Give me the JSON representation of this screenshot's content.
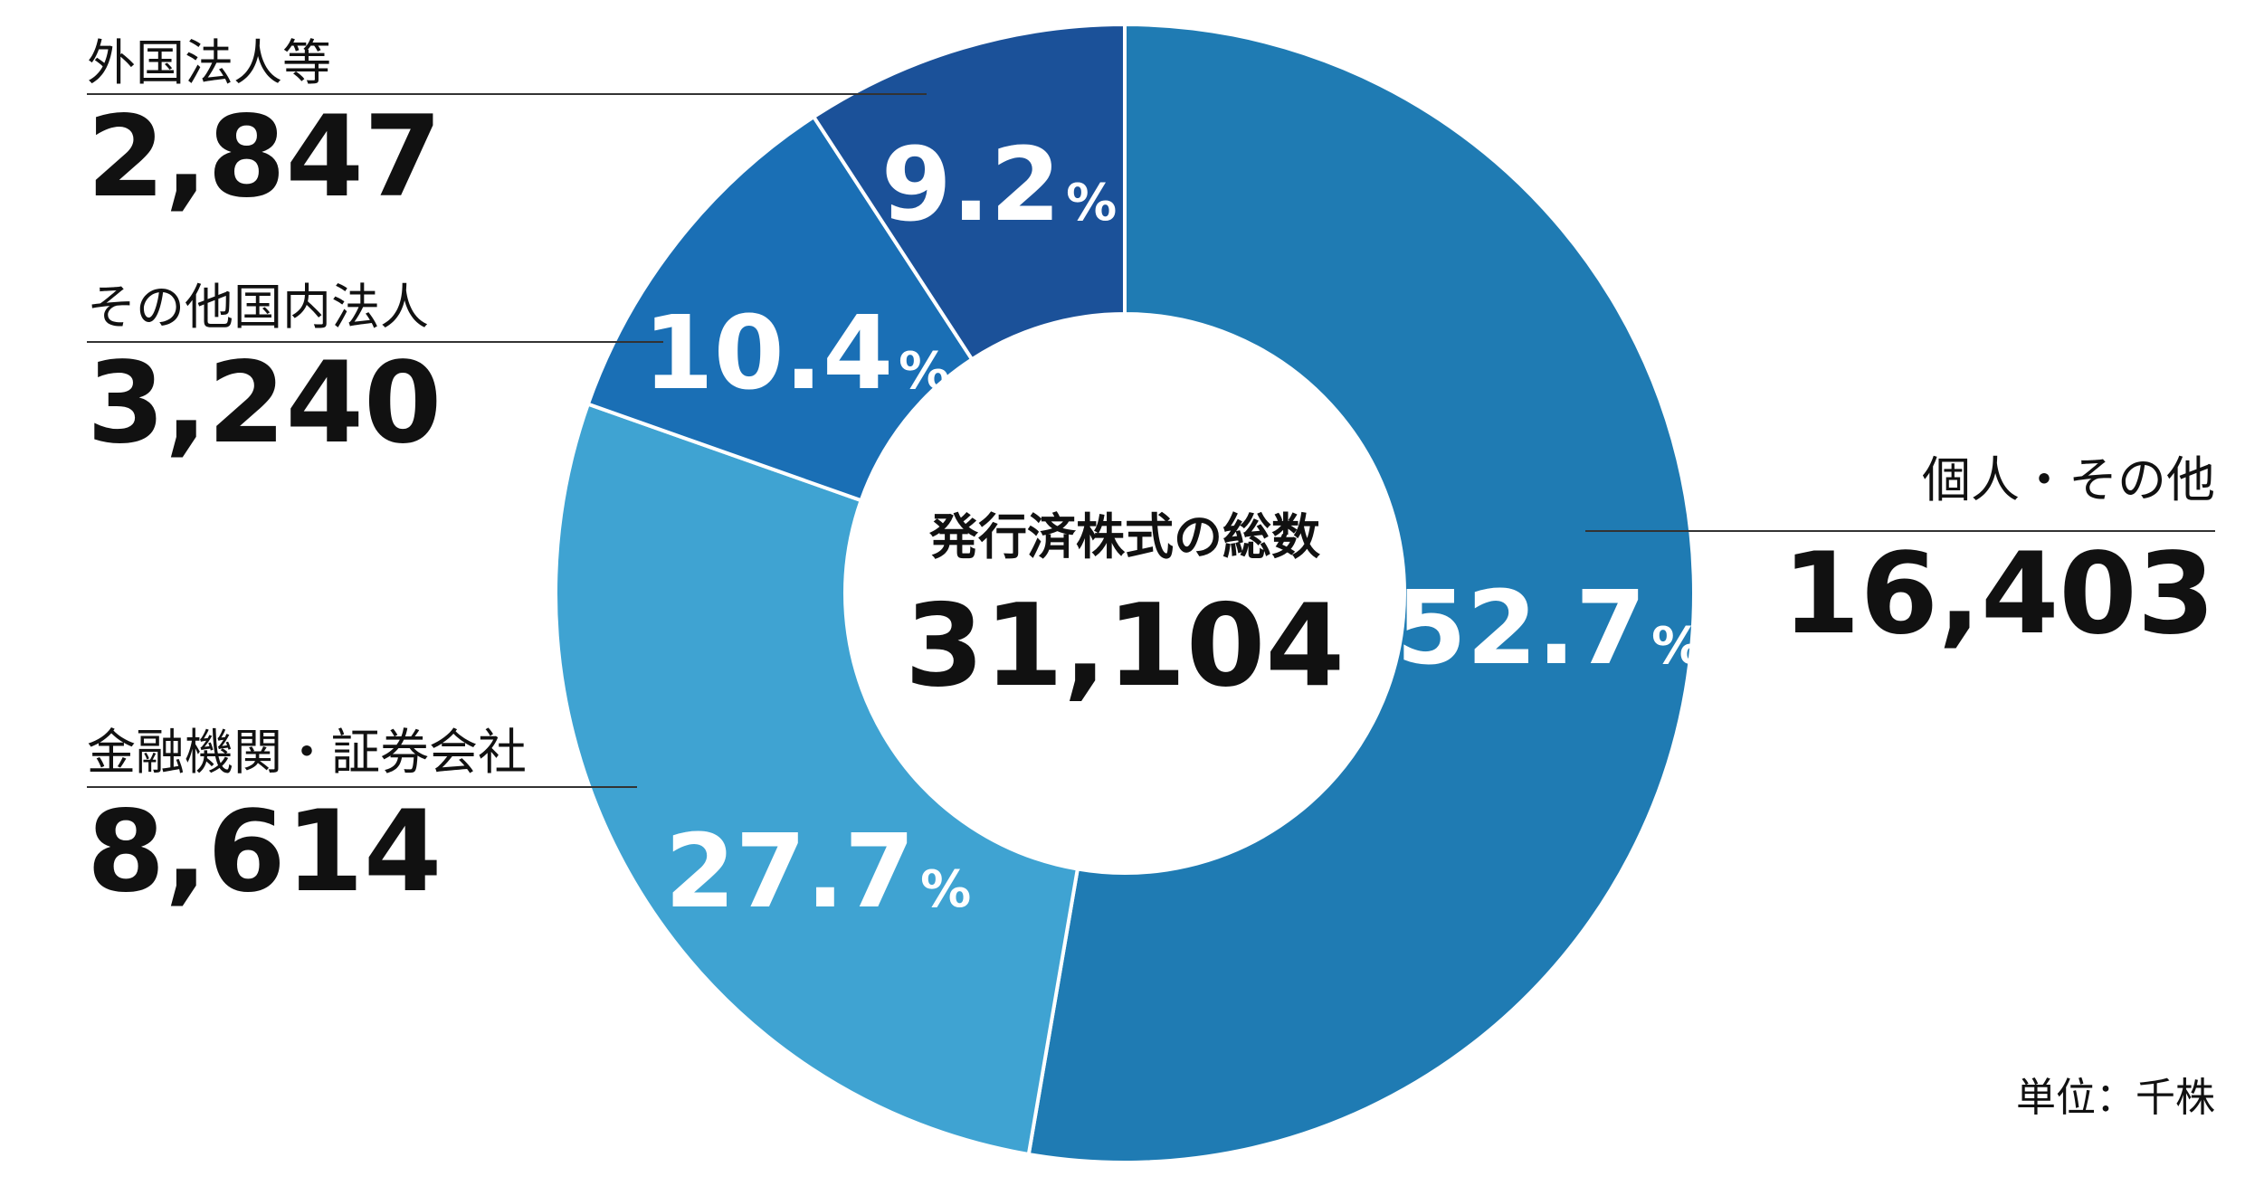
{
  "chart_data": {
    "type": "pie",
    "center_label": "発行済株式の総数",
    "total": 31104,
    "total_label": "31,104",
    "categories": [
      "個人・その他",
      "金融機関・証券会社",
      "その他国内法人",
      "外国法人等"
    ],
    "values": [
      52.7,
      27.7,
      10.4,
      9.2
    ],
    "percent_unit": "%",
    "counts": [
      16403,
      8614,
      3240,
      2847
    ],
    "count_labels": [
      "16,403",
      "8,614",
      "3,240",
      "2,847"
    ],
    "colors": [
      "#1f7bb3",
      "#3fa3d2",
      "#1a6fb5",
      "#1b5199"
    ],
    "unit_note": "単位：千株"
  }
}
